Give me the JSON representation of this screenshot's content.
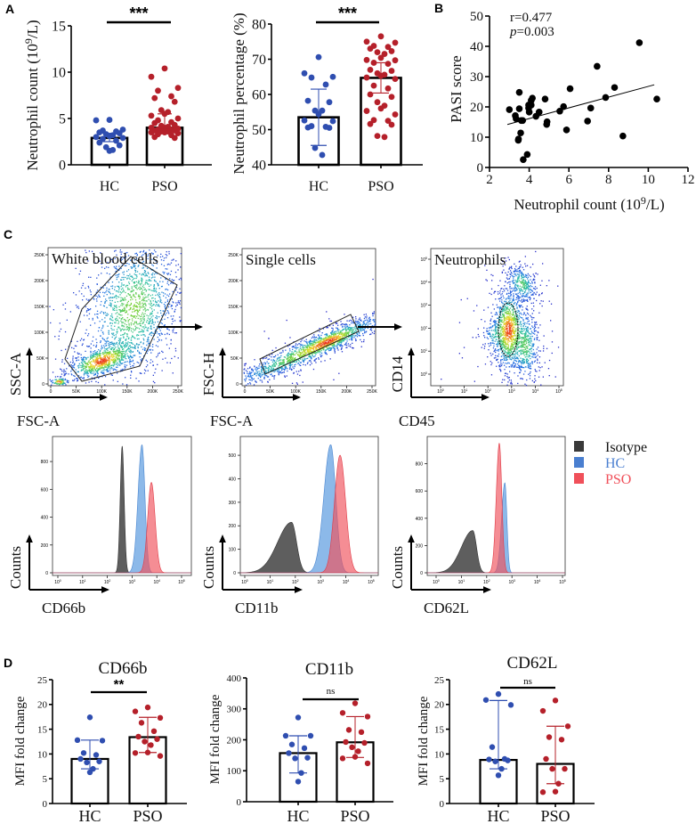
{
  "panel_labels": {
    "A": "A",
    "B": "B",
    "C": "C",
    "D": "D"
  },
  "legend": {
    "items": [
      {
        "label": "Isotype",
        "color": "#3a3a3a"
      },
      {
        "label": "HC",
        "color": "#4a7fd0"
      },
      {
        "label": "PSO",
        "color": "#f0505a"
      }
    ]
  },
  "chart_data": [
    {
      "id": "A1",
      "type": "bar",
      "ylabel": "Neutrophil count (10",
      "ylabel_sup": "9",
      "ylabel_end": "/L)",
      "categories": [
        "HC",
        "PSO"
      ],
      "ylim": [
        0,
        15
      ],
      "yticks": [
        "0",
        "5",
        "10",
        "15"
      ],
      "means": [
        2.9,
        4.0
      ],
      "err": [
        [
          2.5,
          3.4
        ],
        [
          3.8,
          5.5
        ]
      ],
      "colors": [
        "#2f4eb0",
        "#b5202a"
      ],
      "significance": "***",
      "points": [
        [
          4.85,
          4.8,
          3.8,
          3.7,
          3.6,
          3.5,
          3.4,
          3.3,
          3.2,
          3.1,
          3.0,
          2.9,
          2.8,
          2.6,
          2.4,
          2.1,
          1.9,
          1.6,
          1.5
        ],
        [
          10.4,
          9.5,
          8.3,
          8.0,
          7.4,
          7.2,
          6.8,
          5.9,
          5.7,
          5.5,
          5.3,
          5.0,
          4.8,
          4.6,
          4.5,
          4.3,
          4.2,
          4.1,
          4.0,
          4.0,
          3.9,
          3.8,
          3.8,
          3.7,
          3.7,
          3.6,
          3.6,
          3.5,
          3.5,
          3.4,
          3.3,
          3.2,
          3.0,
          2.9
        ]
      ]
    },
    {
      "id": "A2",
      "type": "bar",
      "ylabel": "Neutrophil percentage (%)",
      "categories": [
        "HC",
        "PSO"
      ],
      "ylim": [
        40,
        80
      ],
      "yticks": [
        "40",
        "50",
        "60",
        "70",
        "80"
      ],
      "means": [
        53.5,
        64.7
      ],
      "err": [
        [
          45.5,
          61.5
        ],
        [
          60.4,
          69.0
        ]
      ],
      "colors": [
        "#2f4eb0",
        "#b5202a"
      ],
      "significance": "***",
      "points": [
        [
          70.6,
          66.0,
          65.0,
          64.8,
          62.8,
          58.2,
          57.8,
          55.4,
          55.4,
          54.4,
          52.6,
          52.4,
          51.0,
          50.8,
          50.6,
          50.5,
          44.8,
          42.8
        ],
        [
          76.5,
          75.0,
          74.7,
          73.8,
          73.5,
          73.0,
          72.3,
          72.0,
          71.5,
          70.4,
          69.8,
          69.7,
          69.0,
          68.7,
          67.0,
          66.7,
          66.0,
          65.6,
          65.3,
          64.8,
          64.4,
          62.5,
          61.7,
          60.0,
          59.3,
          57.8,
          56.8,
          56.0,
          55.3,
          54.3,
          52.7,
          52.5,
          51.6,
          51.4,
          48.2,
          47.9
        ]
      ]
    },
    {
      "id": "B",
      "type": "scatter",
      "xlabel": "Neutrophil count (10",
      "xlabel_sup": "9",
      "xlabel_end": "/L)",
      "ylabel": "PASI score",
      "xlim": [
        2,
        12
      ],
      "ylim": [
        0,
        50
      ],
      "xticks": [
        "2",
        "4",
        "6",
        "8",
        "10",
        "12"
      ],
      "yticks": [
        "0",
        "10",
        "20",
        "30",
        "40",
        "50"
      ],
      "annotation_r": "r=0.477",
      "annotation_p_italic": "p",
      "annotation_p_value": "=0.003",
      "fit_line": [
        [
          2.9,
          14.2
        ],
        [
          10.3,
          27.3
        ]
      ],
      "points": [
        [
          3.0,
          19.1
        ],
        [
          3.3,
          17.1
        ],
        [
          3.34,
          16.1
        ],
        [
          3.5,
          24.8
        ],
        [
          3.5,
          19.4
        ],
        [
          3.6,
          15.5
        ],
        [
          3.67,
          15.5
        ],
        [
          3.46,
          9.4
        ],
        [
          3.45,
          9.0
        ],
        [
          3.57,
          11.4
        ],
        [
          3.7,
          2.6
        ],
        [
          3.9,
          4.3
        ],
        [
          3.97,
          20.6
        ],
        [
          4.1,
          22.1
        ],
        [
          4.0,
          18.3
        ],
        [
          3.97,
          19.6
        ],
        [
          4.16,
          22.9
        ],
        [
          4.1,
          20.6
        ],
        [
          4.34,
          16.9
        ],
        [
          4.5,
          18.3
        ],
        [
          4.8,
          22.6
        ],
        [
          4.9,
          15.1
        ],
        [
          4.88,
          14.2
        ],
        [
          5.54,
          18.6
        ],
        [
          5.73,
          20.1
        ],
        [
          5.88,
          12.4
        ],
        [
          6.06,
          26.0
        ],
        [
          7.1,
          19.6
        ],
        [
          6.94,
          15.3
        ],
        [
          7.42,
          33.4
        ],
        [
          7.85,
          23.1
        ],
        [
          8.3,
          26.4
        ],
        [
          8.72,
          10.4
        ],
        [
          9.55,
          41.2
        ],
        [
          10.43,
          22.6
        ]
      ]
    },
    {
      "id": "C1",
      "type": "density",
      "title": "White blood cells",
      "xlabel": "FSC-A",
      "ylabel": "SSC-A",
      "yticks": [
        "0",
        "50K",
        "100K",
        "150K",
        "200K",
        "250K"
      ],
      "xticks": [
        "0",
        "50K",
        "100K",
        "150K",
        "200K",
        "250K"
      ]
    },
    {
      "id": "C2",
      "type": "density",
      "title": "Single cells",
      "xlabel": "FSC-A",
      "ylabel": "FSC-H",
      "yticks": [
        "0",
        "50K",
        "100K",
        "150K",
        "200K",
        "250K"
      ],
      "xticks": [
        "0",
        "50K",
        "100K",
        "150K",
        "200K",
        "250K"
      ]
    },
    {
      "id": "C3",
      "type": "density",
      "title": "Neutrophils",
      "xlabel": "CD45",
      "ylabel": "CD14",
      "tick_base": "10",
      "yticks": [
        "0",
        "1",
        "2",
        "3",
        "4",
        "5"
      ],
      "xticks": [
        "0",
        "1",
        "2",
        "3",
        "4",
        "5"
      ]
    },
    {
      "id": "H1",
      "type": "histogram",
      "xlabel": "CD66b",
      "ylabel": "Counts",
      "tick_base": "10",
      "xticks": [
        "0",
        "1",
        "2",
        "3",
        "4",
        "5"
      ],
      "yticks": [
        "0",
        "200",
        "400",
        "600",
        "800"
      ],
      "ylim": [
        0,
        980
      ],
      "series": [
        {
          "name": "Isotype",
          "peak_log10": 2.6,
          "height": 910,
          "w_left": 0.08,
          "w_right": 0.08
        },
        {
          "name": "HC",
          "peak_log10": 3.4,
          "height": 920,
          "w_left": 0.16,
          "w_right": 0.12
        },
        {
          "name": "PSO",
          "peak_log10": 3.78,
          "height": 650,
          "w_left": 0.15,
          "w_right": 0.15
        }
      ]
    },
    {
      "id": "H2",
      "type": "histogram",
      "xlabel": "CD11b",
      "ylabel": "Counts",
      "tick_base": "10",
      "xticks": [
        "0",
        "1",
        "2",
        "3",
        "4",
        "5"
      ],
      "yticks": [
        "0",
        "100",
        "200",
        "300",
        "400",
        "500"
      ],
      "ylim": [
        0,
        580
      ],
      "series": [
        {
          "name": "Isotype",
          "peak_log10": 1.85,
          "height": 215,
          "w_left": 0.55,
          "w_right": 0.2
        },
        {
          "name": "HC",
          "peak_log10": 3.4,
          "height": 545,
          "w_left": 0.27,
          "w_right": 0.2
        },
        {
          "name": "PSO",
          "peak_log10": 3.77,
          "height": 500,
          "w_left": 0.22,
          "w_right": 0.22
        }
      ]
    },
    {
      "id": "H3",
      "type": "histogram",
      "xlabel": "CD62L",
      "ylabel": "Counts",
      "tick_base": "10",
      "xticks": [
        "0",
        "1",
        "2",
        "3",
        "4",
        "5"
      ],
      "yticks": [
        "0",
        "200",
        "400",
        "600",
        "800"
      ],
      "ylim": [
        0,
        1000
      ],
      "series": [
        {
          "name": "Isotype",
          "peak_log10": 1.45,
          "height": 310,
          "w_left": 0.45,
          "w_right": 0.15
        },
        {
          "name": "HC",
          "peak_log10": 2.72,
          "height": 660,
          "w_left": 0.13,
          "w_right": 0.08
        },
        {
          "name": "PSO",
          "peak_log10": 2.5,
          "height": 950,
          "w_left": 0.12,
          "w_right": 0.1
        }
      ]
    },
    {
      "id": "D1",
      "type": "bar",
      "title": "CD66b",
      "ylabel": "MFI fold change",
      "categories": [
        "HC",
        "PSO"
      ],
      "ylim": [
        0,
        25
      ],
      "yticks": [
        "0",
        "5",
        "10",
        "15",
        "20",
        "25"
      ],
      "means": [
        9.0,
        13.4
      ],
      "err": [
        [
          7.0,
          12.8
        ],
        [
          10.3,
          17.4
        ]
      ],
      "colors": [
        "#2f4eb0",
        "#b5202a"
      ],
      "significance": "**",
      "points": [
        [
          17.4,
          12.8,
          12.7,
          10.2,
          9.8,
          9.0,
          8.5,
          8.3,
          7.0,
          6.3
        ],
        [
          19.4,
          18.6,
          17.3,
          16.3,
          14.6,
          13.5,
          13.0,
          12.5,
          11.8,
          10.3,
          10.2,
          9.6
        ]
      ]
    },
    {
      "id": "D2",
      "type": "bar",
      "title": "CD11b",
      "ylabel": "MFI fold change",
      "categories": [
        "HC",
        "PSO"
      ],
      "ylim": [
        0,
        400
      ],
      "yticks": [
        "0",
        "100",
        "200",
        "300",
        "400"
      ],
      "means": [
        157,
        192
      ],
      "err": [
        [
          93,
          213
        ],
        [
          143,
          275
        ]
      ],
      "colors": [
        "#2f4eb0",
        "#b5202a"
      ],
      "significance": "ns",
      "points": [
        [
          272,
          213,
          213,
          185,
          173,
          157,
          142,
          140,
          93,
          65
        ],
        [
          318,
          287,
          275,
          232,
          225,
          193,
          190,
          176,
          163,
          145,
          140,
          124
        ]
      ]
    },
    {
      "id": "D3",
      "type": "bar",
      "title": "CD62L",
      "ylabel": "MFI fold change",
      "categories": [
        "HC",
        "PSO"
      ],
      "ylim": [
        0,
        25
      ],
      "yticks": [
        "0",
        "5",
        "10",
        "15",
        "20",
        "25"
      ],
      "means": [
        8.8,
        8.0
      ],
      "err": [
        [
          7.0,
          20.8
        ],
        [
          4.0,
          15.6
        ]
      ],
      "colors": [
        "#2f4eb0",
        "#b5202a"
      ],
      "significance": "ns",
      "points": [
        [
          22.1,
          20.9,
          19.9,
          11.4,
          9.0,
          8.9,
          8.7,
          8.5,
          7.0,
          5.7
        ],
        [
          20.8,
          18.7,
          15.6,
          13.4,
          12.9,
          9.0,
          7.0,
          7.0,
          4.0,
          2.4,
          2.3
        ]
      ]
    }
  ]
}
